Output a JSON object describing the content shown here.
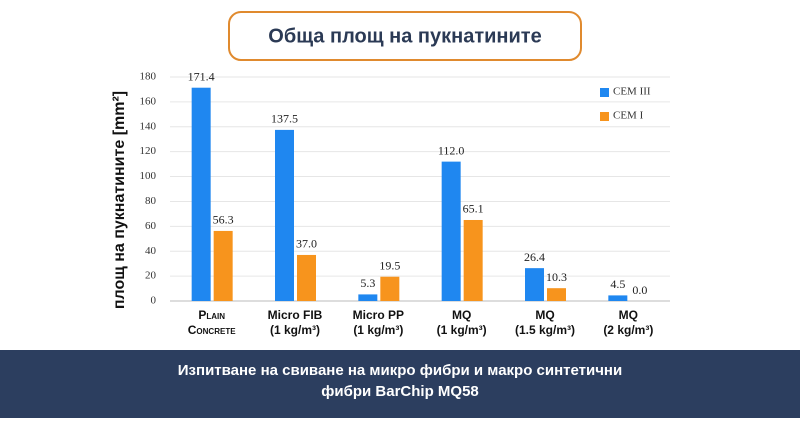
{
  "header": {
    "title": "Обща площ на пукнатините"
  },
  "chart_data": {
    "type": "bar",
    "y_label": "площ на пукнатините [mm²]",
    "categories": [
      [
        "Plain",
        "Concrete"
      ],
      [
        "Micro FIB",
        "(1 kg/m³)"
      ],
      [
        "Micro PP",
        "(1 kg/m³)"
      ],
      [
        "MQ",
        "(1 kg/m³)"
      ],
      [
        "MQ",
        "(1.5 kg/m³)"
      ],
      [
        "MQ",
        "(2 kg/m³)"
      ]
    ],
    "series": [
      {
        "name": "CEM III",
        "color": "#1f87f0",
        "values": [
          171.4,
          137.5,
          5.3,
          112.0,
          26.4,
          4.5
        ],
        "value_labels": [
          "171.4",
          "137.5",
          "5.3",
          "112.0",
          "26.4",
          "4.5"
        ]
      },
      {
        "name": "CEM I",
        "color": "#f7941d",
        "values": [
          56.3,
          37.0,
          19.5,
          65.1,
          10.3,
          0.0
        ],
        "value_labels": [
          "56.3",
          "37.0",
          "19.5",
          "65.1",
          "10.3",
          "0.0"
        ]
      }
    ],
    "ylim": [
      0,
      180
    ],
    "yticks": [
      0,
      20,
      40,
      60,
      80,
      100,
      120,
      140,
      160,
      180
    ],
    "grid": true,
    "legend": "top-right"
  },
  "footer": {
    "lines": [
      "Изпитване на свиване на микро фибри и макро синтетични",
      "фибри BarChip MQ58"
    ]
  }
}
